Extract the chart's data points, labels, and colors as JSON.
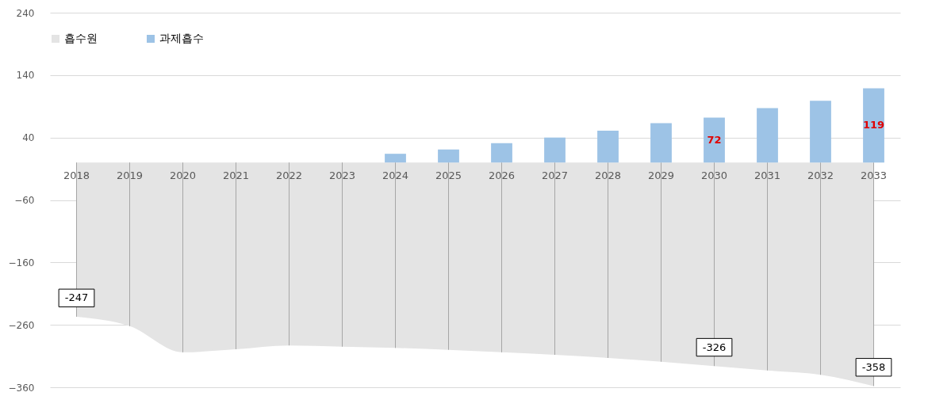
{
  "chart_data": {
    "type": "bar",
    "categories": [
      "2018",
      "2019",
      "2020",
      "2021",
      "2022",
      "2023",
      "2024",
      "2025",
      "2026",
      "2027",
      "2028",
      "2029",
      "2030",
      "2031",
      "2032",
      "2033"
    ],
    "ylim": [
      -360,
      240
    ],
    "yticks": [
      -360,
      -260,
      -160,
      -60,
      40,
      140,
      240
    ],
    "grid": "y",
    "legend": "top",
    "series": [
      {
        "name": "흡수원",
        "type": "area",
        "color": "#e4e4e4",
        "values": [
          -247,
          -262,
          -304,
          -299,
          -293,
          -295,
          -297,
          -300,
          -304,
          -308,
          -313,
          -319,
          -326,
          -333,
          -340,
          -358
        ],
        "value_labels": [
          "-247",
          null,
          null,
          null,
          null,
          null,
          null,
          null,
          null,
          null,
          null,
          null,
          "-326",
          null,
          null,
          "-358"
        ],
        "errors": [
          [
            -247,
            0
          ],
          [
            -262,
            0
          ],
          [
            -304,
            0
          ],
          [
            -299,
            0
          ],
          [
            -293,
            0
          ],
          [
            -295,
            0
          ],
          [
            -297,
            0
          ],
          [
            -300,
            0
          ],
          [
            -304,
            0
          ],
          [
            -308,
            0
          ],
          [
            -313,
            0
          ],
          [
            -319,
            0
          ],
          [
            -326,
            0
          ],
          [
            -333,
            0
          ],
          [
            -340,
            0
          ],
          [
            -358,
            0
          ]
        ]
      },
      {
        "name": "과제흡수",
        "color": "#9dc3e6",
        "values": [
          null,
          null,
          null,
          null,
          null,
          null,
          14,
          21,
          31,
          40,
          51,
          63,
          72,
          87,
          99,
          119
        ],
        "value_labels": [
          null,
          null,
          null,
          null,
          null,
          null,
          null,
          null,
          null,
          null,
          null,
          null,
          "72",
          null,
          null,
          "119"
        ]
      }
    ]
  }
}
